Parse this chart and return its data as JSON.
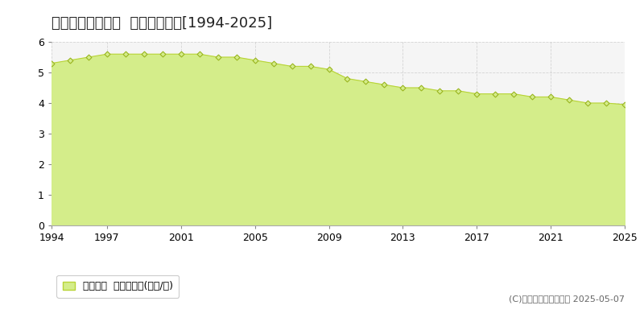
{
  "title": "黒川郡大郷町粕川  公示地価推移[1994-2025]",
  "years": [
    1994,
    1995,
    1996,
    1997,
    1998,
    1999,
    2000,
    2001,
    2002,
    2003,
    2004,
    2005,
    2006,
    2007,
    2008,
    2009,
    2010,
    2011,
    2012,
    2013,
    2014,
    2015,
    2016,
    2017,
    2018,
    2019,
    2020,
    2021,
    2022,
    2023,
    2024,
    2025
  ],
  "values": [
    5.3,
    5.4,
    5.5,
    5.6,
    5.6,
    5.6,
    5.6,
    5.6,
    5.6,
    5.5,
    5.5,
    5.4,
    5.3,
    5.2,
    5.2,
    5.1,
    4.8,
    4.7,
    4.6,
    4.5,
    4.5,
    4.4,
    4.4,
    4.3,
    4.3,
    4.3,
    4.2,
    4.2,
    4.1,
    4.0,
    4.0,
    3.95
  ],
  "fill_color": "#d4ed8a",
  "line_color": "#b8d436",
  "marker_facecolor": "#d4ed8a",
  "marker_edgecolor": "#9ab520",
  "background_color": "#ffffff",
  "plot_bg_color": "#f5f5f5",
  "grid_color": "#cccccc",
  "ylim": [
    0,
    6
  ],
  "yticks": [
    0,
    1,
    2,
    3,
    4,
    5,
    6
  ],
  "xticks": [
    1994,
    1997,
    2001,
    2005,
    2009,
    2013,
    2017,
    2021,
    2025
  ],
  "xlim": [
    1994,
    2025
  ],
  "legend_label": "公示地価  平均坪単価(万円/坪)",
  "copyright": "(C)土地価格ドットコム 2025-05-07",
  "title_fontsize": 13,
  "axis_fontsize": 9,
  "legend_fontsize": 9,
  "copyright_fontsize": 8
}
